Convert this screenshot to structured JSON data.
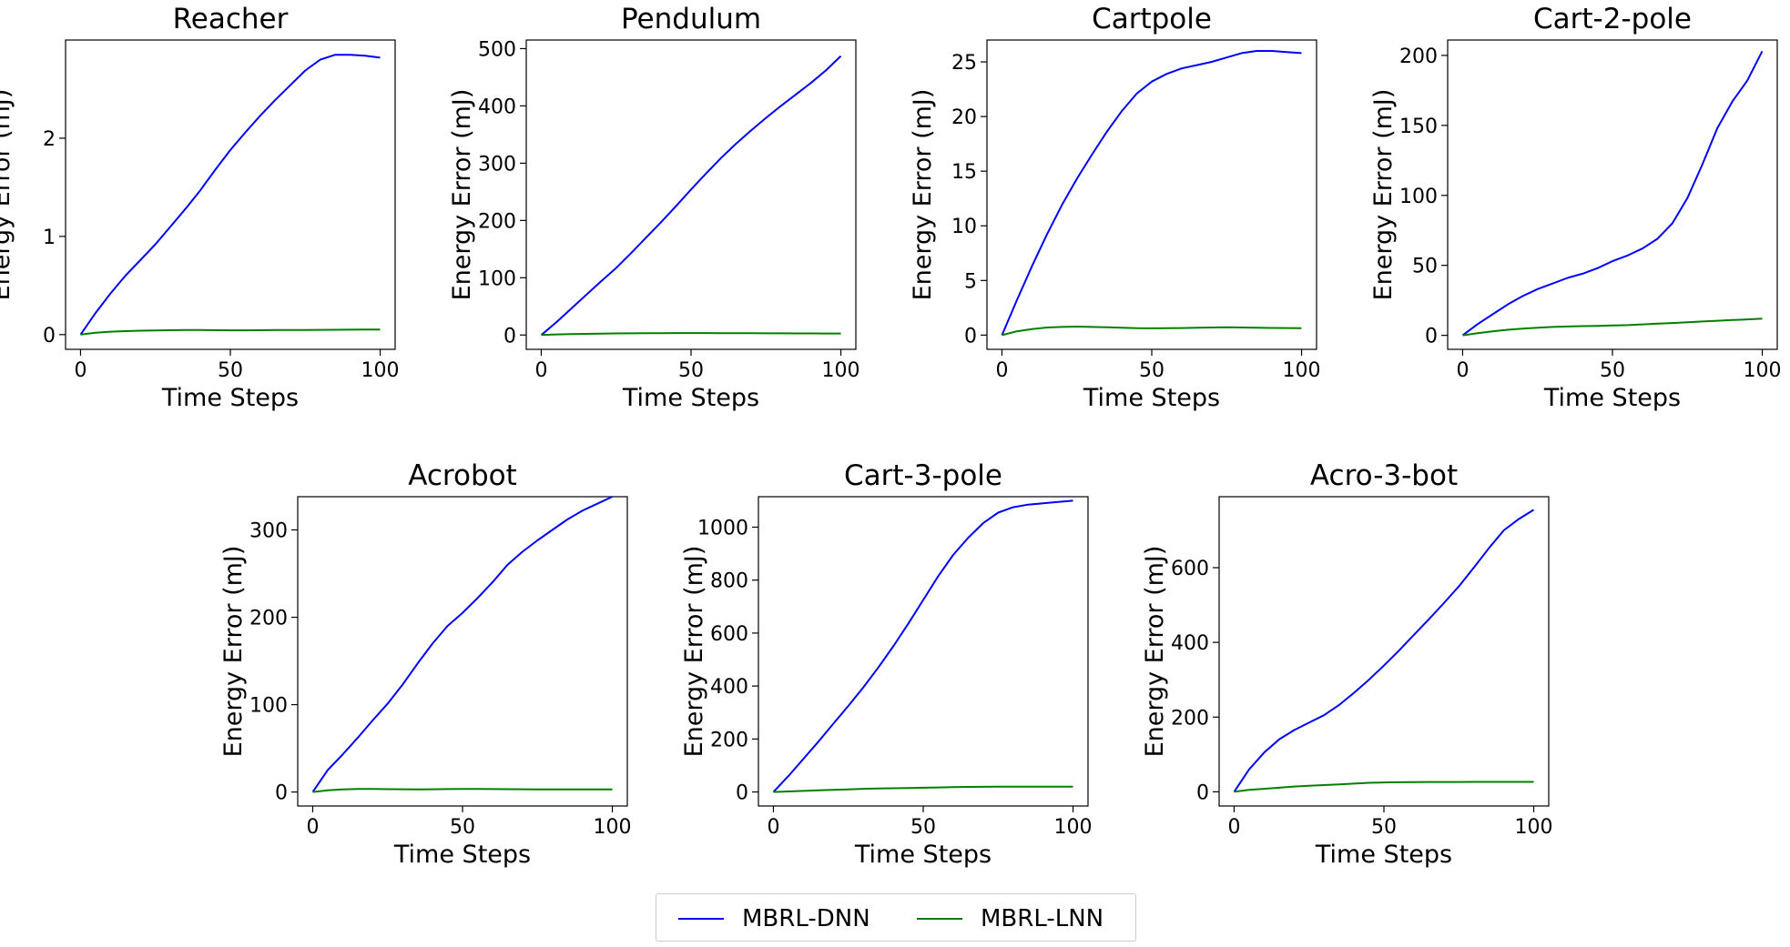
{
  "colors": {
    "dnn": "#0000ff",
    "lnn": "#008000"
  },
  "legend": {
    "dnn_label": "MBRL-DNN",
    "lnn_label": "MBRL-LNN",
    "placement": "bottom-center"
  },
  "chart_data": [
    {
      "type": "line",
      "title": "Reacher",
      "xlabel": "Time Steps",
      "ylabel": "Energy Error (mJ)",
      "xlim": [
        -5,
        105
      ],
      "ylim": [
        -0.15,
        3.0
      ],
      "xticks": [
        0,
        50,
        100
      ],
      "yticks": [
        0,
        1,
        2
      ],
      "grid": false,
      "x": [
        0,
        5,
        10,
        15,
        20,
        25,
        30,
        35,
        40,
        45,
        50,
        55,
        60,
        65,
        70,
        75,
        80,
        85,
        90,
        95,
        100
      ],
      "series": [
        {
          "name": "MBRL-DNN",
          "values": [
            0,
            0.22,
            0.42,
            0.6,
            0.76,
            0.92,
            1.1,
            1.28,
            1.47,
            1.68,
            1.88,
            2.06,
            2.23,
            2.39,
            2.54,
            2.69,
            2.8,
            2.85,
            2.85,
            2.84,
            2.82
          ]
        },
        {
          "name": "MBRL-LNN",
          "values": [
            0,
            0.02,
            0.03,
            0.035,
            0.04,
            0.042,
            0.045,
            0.046,
            0.047,
            0.045,
            0.044,
            0.044,
            0.045,
            0.046,
            0.046,
            0.047,
            0.048,
            0.049,
            0.05,
            0.051,
            0.052
          ]
        }
      ]
    },
    {
      "type": "line",
      "title": "Pendulum",
      "xlabel": "Time Steps",
      "ylabel": "Energy Error (mJ)",
      "xlim": [
        -5,
        105
      ],
      "ylim": [
        -25,
        515
      ],
      "xticks": [
        0,
        50,
        100
      ],
      "yticks": [
        0,
        100,
        200,
        300,
        400,
        500
      ],
      "grid": false,
      "x": [
        0,
        5,
        10,
        15,
        20,
        25,
        30,
        35,
        40,
        45,
        50,
        55,
        60,
        65,
        70,
        75,
        80,
        85,
        90,
        95,
        100
      ],
      "series": [
        {
          "name": "MBRL-DNN",
          "values": [
            0,
            22,
            46,
            70,
            94,
            117,
            143,
            170,
            197,
            225,
            254,
            282,
            309,
            334,
            357,
            379,
            400,
            420,
            440,
            462,
            487
          ]
        },
        {
          "name": "MBRL-LNN",
          "values": [
            0,
            1,
            1.5,
            2,
            2.5,
            2.8,
            3,
            3.2,
            3.3,
            3.4,
            3.4,
            3.4,
            3.3,
            3.2,
            3.1,
            3,
            2.9,
            2.8,
            2.8,
            2.7,
            2.7
          ]
        }
      ]
    },
    {
      "type": "line",
      "title": "Cartpole",
      "xlabel": "Time Steps",
      "ylabel": "Energy Error (mJ)",
      "xlim": [
        -5,
        105
      ],
      "ylim": [
        -1.3,
        27
      ],
      "xticks": [
        0,
        50,
        100
      ],
      "yticks": [
        0,
        5,
        10,
        15,
        20,
        25
      ],
      "grid": false,
      "x": [
        0,
        5,
        10,
        15,
        20,
        25,
        30,
        35,
        40,
        45,
        50,
        55,
        60,
        65,
        70,
        75,
        80,
        85,
        90,
        95,
        100
      ],
      "series": [
        {
          "name": "MBRL-DNN",
          "values": [
            0,
            3.2,
            6.3,
            9.2,
            11.9,
            14.3,
            16.5,
            18.6,
            20.5,
            22.1,
            23.2,
            23.9,
            24.4,
            24.7,
            25.0,
            25.4,
            25.8,
            26.0,
            26.0,
            25.9,
            25.8
          ]
        },
        {
          "name": "MBRL-LNN",
          "values": [
            0,
            0.35,
            0.55,
            0.7,
            0.75,
            0.78,
            0.75,
            0.72,
            0.68,
            0.63,
            0.62,
            0.63,
            0.65,
            0.68,
            0.7,
            0.72,
            0.7,
            0.68,
            0.66,
            0.65,
            0.64
          ]
        }
      ]
    },
    {
      "type": "line",
      "title": "Cart-2-pole",
      "xlabel": "Time Steps",
      "ylabel": "Energy Error (mJ)",
      "xlim": [
        -5,
        105
      ],
      "ylim": [
        -10,
        211
      ],
      "xticks": [
        0,
        50,
        100
      ],
      "yticks": [
        0,
        50,
        100,
        150,
        200
      ],
      "grid": false,
      "x": [
        0,
        5,
        10,
        15,
        20,
        25,
        30,
        35,
        40,
        45,
        50,
        55,
        60,
        65,
        70,
        75,
        80,
        85,
        90,
        95,
        100
      ],
      "series": [
        {
          "name": "MBRL-DNN",
          "values": [
            0,
            8,
            15,
            22,
            28,
            33,
            37,
            41,
            44,
            48,
            53,
            57,
            62,
            69,
            80,
            98,
            122,
            148,
            167,
            182,
            203
          ]
        },
        {
          "name": "MBRL-LNN",
          "values": [
            0,
            1.5,
            2.8,
            4,
            4.8,
            5.5,
            6,
            6.3,
            6.6,
            6.8,
            7,
            7.3,
            7.8,
            8.3,
            8.8,
            9.4,
            9.9,
            10.4,
            10.9,
            11.4,
            11.9
          ]
        }
      ]
    },
    {
      "type": "line",
      "title": "Acrobot",
      "xlabel": "Time Steps",
      "ylabel": "Energy Error (mJ)",
      "xlim": [
        -5,
        105
      ],
      "ylim": [
        -16,
        338
      ],
      "xticks": [
        0,
        50,
        100
      ],
      "yticks": [
        0,
        100,
        200,
        300
      ],
      "grid": false,
      "x": [
        0,
        5,
        10,
        15,
        20,
        25,
        30,
        35,
        40,
        45,
        50,
        55,
        60,
        65,
        70,
        75,
        80,
        85,
        90,
        95,
        100
      ],
      "series": [
        {
          "name": "MBRL-DNN",
          "values": [
            0,
            25,
            43,
            62,
            82,
            101,
            123,
            147,
            170,
            190,
            205,
            222,
            240,
            260,
            275,
            288,
            300,
            312,
            322,
            330,
            338
          ]
        },
        {
          "name": "MBRL-LNN",
          "values": [
            0,
            2,
            3,
            3.5,
            3.5,
            3.3,
            3.2,
            3.1,
            3.2,
            3.4,
            3.5,
            3.5,
            3.4,
            3.3,
            3.2,
            3.1,
            3,
            3,
            3,
            3,
            3
          ]
        }
      ]
    },
    {
      "type": "line",
      "title": "Cart-3-pole",
      "xlabel": "Time Steps",
      "ylabel": "Energy Error (mJ)",
      "xlim": [
        -5,
        105
      ],
      "ylim": [
        -53,
        1115
      ],
      "xticks": [
        0,
        50,
        100
      ],
      "yticks": [
        0,
        200,
        400,
        600,
        800,
        1000
      ],
      "grid": false,
      "x": [
        0,
        5,
        10,
        15,
        20,
        25,
        30,
        35,
        40,
        45,
        50,
        55,
        60,
        65,
        70,
        75,
        80,
        85,
        90,
        95,
        100
      ],
      "series": [
        {
          "name": "MBRL-DNN",
          "values": [
            0,
            60,
            125,
            190,
            258,
            325,
            395,
            470,
            550,
            635,
            725,
            815,
            895,
            960,
            1015,
            1055,
            1075,
            1085,
            1090,
            1095,
            1100
          ]
        },
        {
          "name": "MBRL-LNN",
          "values": [
            0,
            2,
            4,
            6,
            8,
            10,
            12,
            13,
            14,
            15,
            16,
            17,
            18,
            19,
            19.5,
            20,
            20,
            20,
            20,
            20,
            20
          ]
        }
      ]
    },
    {
      "type": "line",
      "title": "Acro-3-bot",
      "xlabel": "Time Steps",
      "ylabel": "Energy Error (mJ)",
      "xlim": [
        -5,
        105
      ],
      "ylim": [
        -38,
        790
      ],
      "xticks": [
        0,
        50,
        100
      ],
      "yticks": [
        0,
        200,
        400,
        600
      ],
      "grid": false,
      "x": [
        0,
        5,
        10,
        15,
        20,
        25,
        30,
        35,
        40,
        45,
        50,
        55,
        60,
        65,
        70,
        75,
        80,
        85,
        90,
        95,
        100
      ],
      "series": [
        {
          "name": "MBRL-DNN",
          "values": [
            0,
            60,
            105,
            140,
            165,
            185,
            205,
            232,
            265,
            300,
            338,
            378,
            420,
            462,
            505,
            550,
            600,
            652,
            700,
            730,
            755
          ]
        },
        {
          "name": "MBRL-LNN",
          "values": [
            0,
            5,
            8,
            11,
            14,
            16,
            18,
            20,
            22,
            24,
            25,
            25.5,
            26,
            26.2,
            26.3,
            26.4,
            26.5,
            26.5,
            26.5,
            26.5,
            26.5
          ]
        }
      ]
    }
  ]
}
